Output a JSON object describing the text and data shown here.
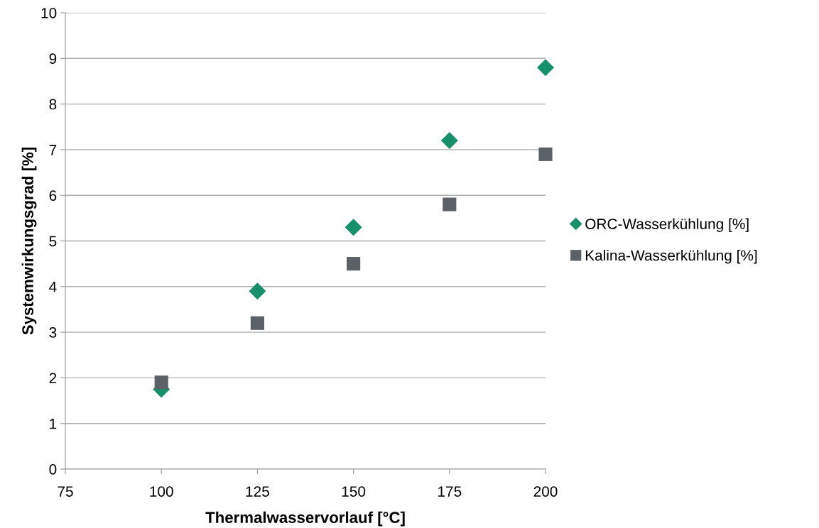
{
  "chart_data": {
    "type": "scatter",
    "xlabel": "Thermalwasservorlauf [°C]",
    "ylabel": "Systemwirkungsgrad [%]",
    "x": [
      100,
      125,
      150,
      175,
      200
    ],
    "series": [
      {
        "name": "ORC-Wasserkühlung [%]",
        "color": "#17906a",
        "marker": "diamond",
        "values": [
          1.75,
          3.9,
          5.3,
          7.2,
          8.8
        ]
      },
      {
        "name": "Kalina-Wasserkühlung [%]",
        "color": "#5b6166",
        "marker": "square",
        "values": [
          1.9,
          3.2,
          4.5,
          5.8,
          6.9
        ]
      }
    ],
    "xlim": [
      75,
      200
    ],
    "xticks": [
      75,
      100,
      125,
      150,
      175,
      200
    ],
    "ylim": [
      0,
      10
    ],
    "yticks": [
      0,
      1,
      2,
      3,
      4,
      5,
      6,
      7,
      8,
      9,
      10
    ],
    "grid": "y",
    "legend": "right"
  }
}
